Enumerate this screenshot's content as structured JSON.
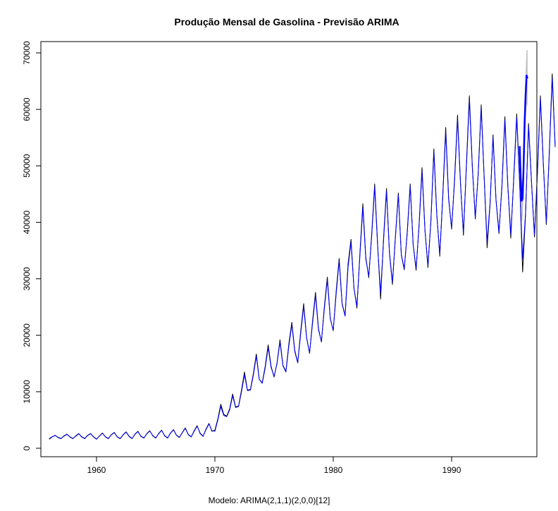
{
  "chart_data": {
    "type": "line",
    "title": "Produção Mensal de Gasolina - Previsão ARIMA",
    "xlabel": "",
    "ylabel": "",
    "caption": "Modelo: ARIMA(2,1,1)(2,0,0)[12]",
    "xlim": [
      1955.3,
      1997.2
    ],
    "ylim": [
      -1500,
      72000
    ],
    "x_ticks": [
      1960,
      1970,
      1980,
      1990
    ],
    "x_tick_labels": [
      "1960",
      "1970",
      "1980",
      "1990"
    ],
    "y_ticks": [
      0,
      10000,
      20000,
      30000,
      40000,
      50000,
      60000,
      70000
    ],
    "y_tick_labels": [
      "0",
      "10000",
      "20000",
      "30000",
      "40000",
      "50000",
      "60000",
      "70000"
    ],
    "grid": false,
    "legend": "none",
    "colors": {
      "observed": "#000000",
      "fitted": "#0000ff",
      "interval": "#c0c0c0"
    },
    "x_start": 1956.0,
    "x_step": 0.25,
    "series": [
      {
        "values": [
          1600,
          2000,
          2300,
          1900,
          1700,
          2200,
          2500,
          2000,
          1700,
          2200,
          2600,
          2000,
          1700,
          2300,
          2600,
          2000,
          1600,
          2200,
          2700,
          2000,
          1700,
          2400,
          2800,
          2000,
          1700,
          2400,
          2900,
          2100,
          1700,
          2500,
          3000,
          2100,
          1800,
          2600,
          3100,
          2200,
          1800,
          2600,
          3200,
          2200,
          1800,
          2700,
          3300,
          2300,
          1900,
          2800,
          3600,
          2400,
          2000,
          3100,
          4000,
          2600,
          2100,
          3400,
          4400,
          3000,
          3200,
          5200,
          7800,
          6000,
          5700,
          7000,
          9600,
          7300,
          7500,
          10300,
          13500,
          10300,
          10400,
          13200,
          16700,
          12200,
          11600,
          14500,
          18300,
          14500,
          12600,
          15100,
          19200,
          14700,
          13600,
          18500,
          22300,
          17300,
          15200,
          20700,
          25600,
          19600,
          16800,
          22500,
          27600,
          21200,
          18800,
          25100,
          30300,
          23000,
          20800,
          27900,
          33600,
          25600,
          23500,
          32600,
          37000,
          28400,
          24800,
          34400,
          43300,
          33800,
          30200,
          38000,
          46800,
          36000,
          26400,
          37200,
          46000,
          34500,
          29000,
          37500,
          45200,
          34200,
          31600,
          38300,
          46800,
          36100,
          31500,
          39600,
          49700,
          38600,
          32000,
          40300,
          53000,
          41400,
          34000,
          44700,
          56800,
          44300,
          38800,
          47700,
          59000,
          47000,
          37700,
          50300,
          62400,
          50000,
          40600,
          48800,
          60800,
          48000,
          35500,
          43200,
          55500,
          44000,
          38000,
          46500,
          58700,
          46500,
          37200,
          48000,
          59200,
          47000,
          31200,
          41500,
          57500,
          47200,
          37400,
          49000,
          62400,
          50400,
          39600,
          52300,
          66300,
          53500
        ]
      },
      {
        "values": [
          1700,
          2050,
          2250,
          1950,
          1750,
          2150,
          2450,
          2050,
          1750,
          2150,
          2550,
          2050,
          1750,
          2250,
          2550,
          2050,
          1650,
          2150,
          2650,
          2050,
          1750,
          2350,
          2750,
          2050,
          1750,
          2350,
          2850,
          2150,
          1750,
          2450,
          2950,
          2150,
          1850,
          2550,
          3050,
          2250,
          1850,
          2550,
          3150,
          2250,
          1850,
          2650,
          3250,
          2350,
          1950,
          2750,
          3500,
          2450,
          2050,
          3000,
          3900,
          2700,
          2150,
          3300,
          4300,
          3100,
          3000,
          5000,
          7400,
          5800,
          5600,
          6800,
          9300,
          7200,
          7400,
          10000,
          13000,
          10200,
          10300,
          12900,
          16300,
          12200,
          11500,
          14200,
          17800,
          14300,
          12700,
          15000,
          18800,
          14600,
          13500,
          18100,
          21900,
          17100,
          15100,
          20300,
          25100,
          19500,
          16900,
          22100,
          27100,
          21000,
          18900,
          24700,
          29800,
          22900,
          20900,
          27400,
          33100,
          25500,
          23400,
          32000,
          36500,
          28300,
          25200,
          34000,
          42600,
          33500,
          30500,
          37600,
          46200,
          35800,
          27500,
          36700,
          45500,
          34600,
          29400,
          37200,
          44800,
          34300,
          31800,
          38000,
          46300,
          36100,
          31800,
          39300,
          49000,
          38500,
          32400,
          40100,
          52400,
          41200,
          34400,
          44300,
          56000,
          44000,
          39000,
          47300,
          58300,
          46800,
          38200,
          49800,
          61600,
          49700,
          40900,
          48600,
          60200,
          47900,
          36500,
          43500,
          55000,
          44000,
          38300,
          46200,
          58000,
          46300,
          37900,
          47600,
          58500,
          46800,
          33500,
          41800,
          57000,
          47000,
          37800,
          48700,
          61800,
          50200,
          40000,
          51900,
          65500,
          53300
        ]
      }
    ],
    "forecast": {
      "x_start": 1995.75,
      "x_step": 0.0833,
      "values": [
        53500,
        48000,
        43800,
        44200,
        50000,
        57500,
        62500,
        66000,
        65500
      ],
      "lower": [
        53000,
        46500,
        40000,
        40500,
        46000,
        53500,
        58000,
        61000,
        60500
      ],
      "upper": [
        54000,
        49500,
        47000,
        48000,
        54000,
        61500,
        66500,
        70500,
        70500
      ]
    }
  }
}
